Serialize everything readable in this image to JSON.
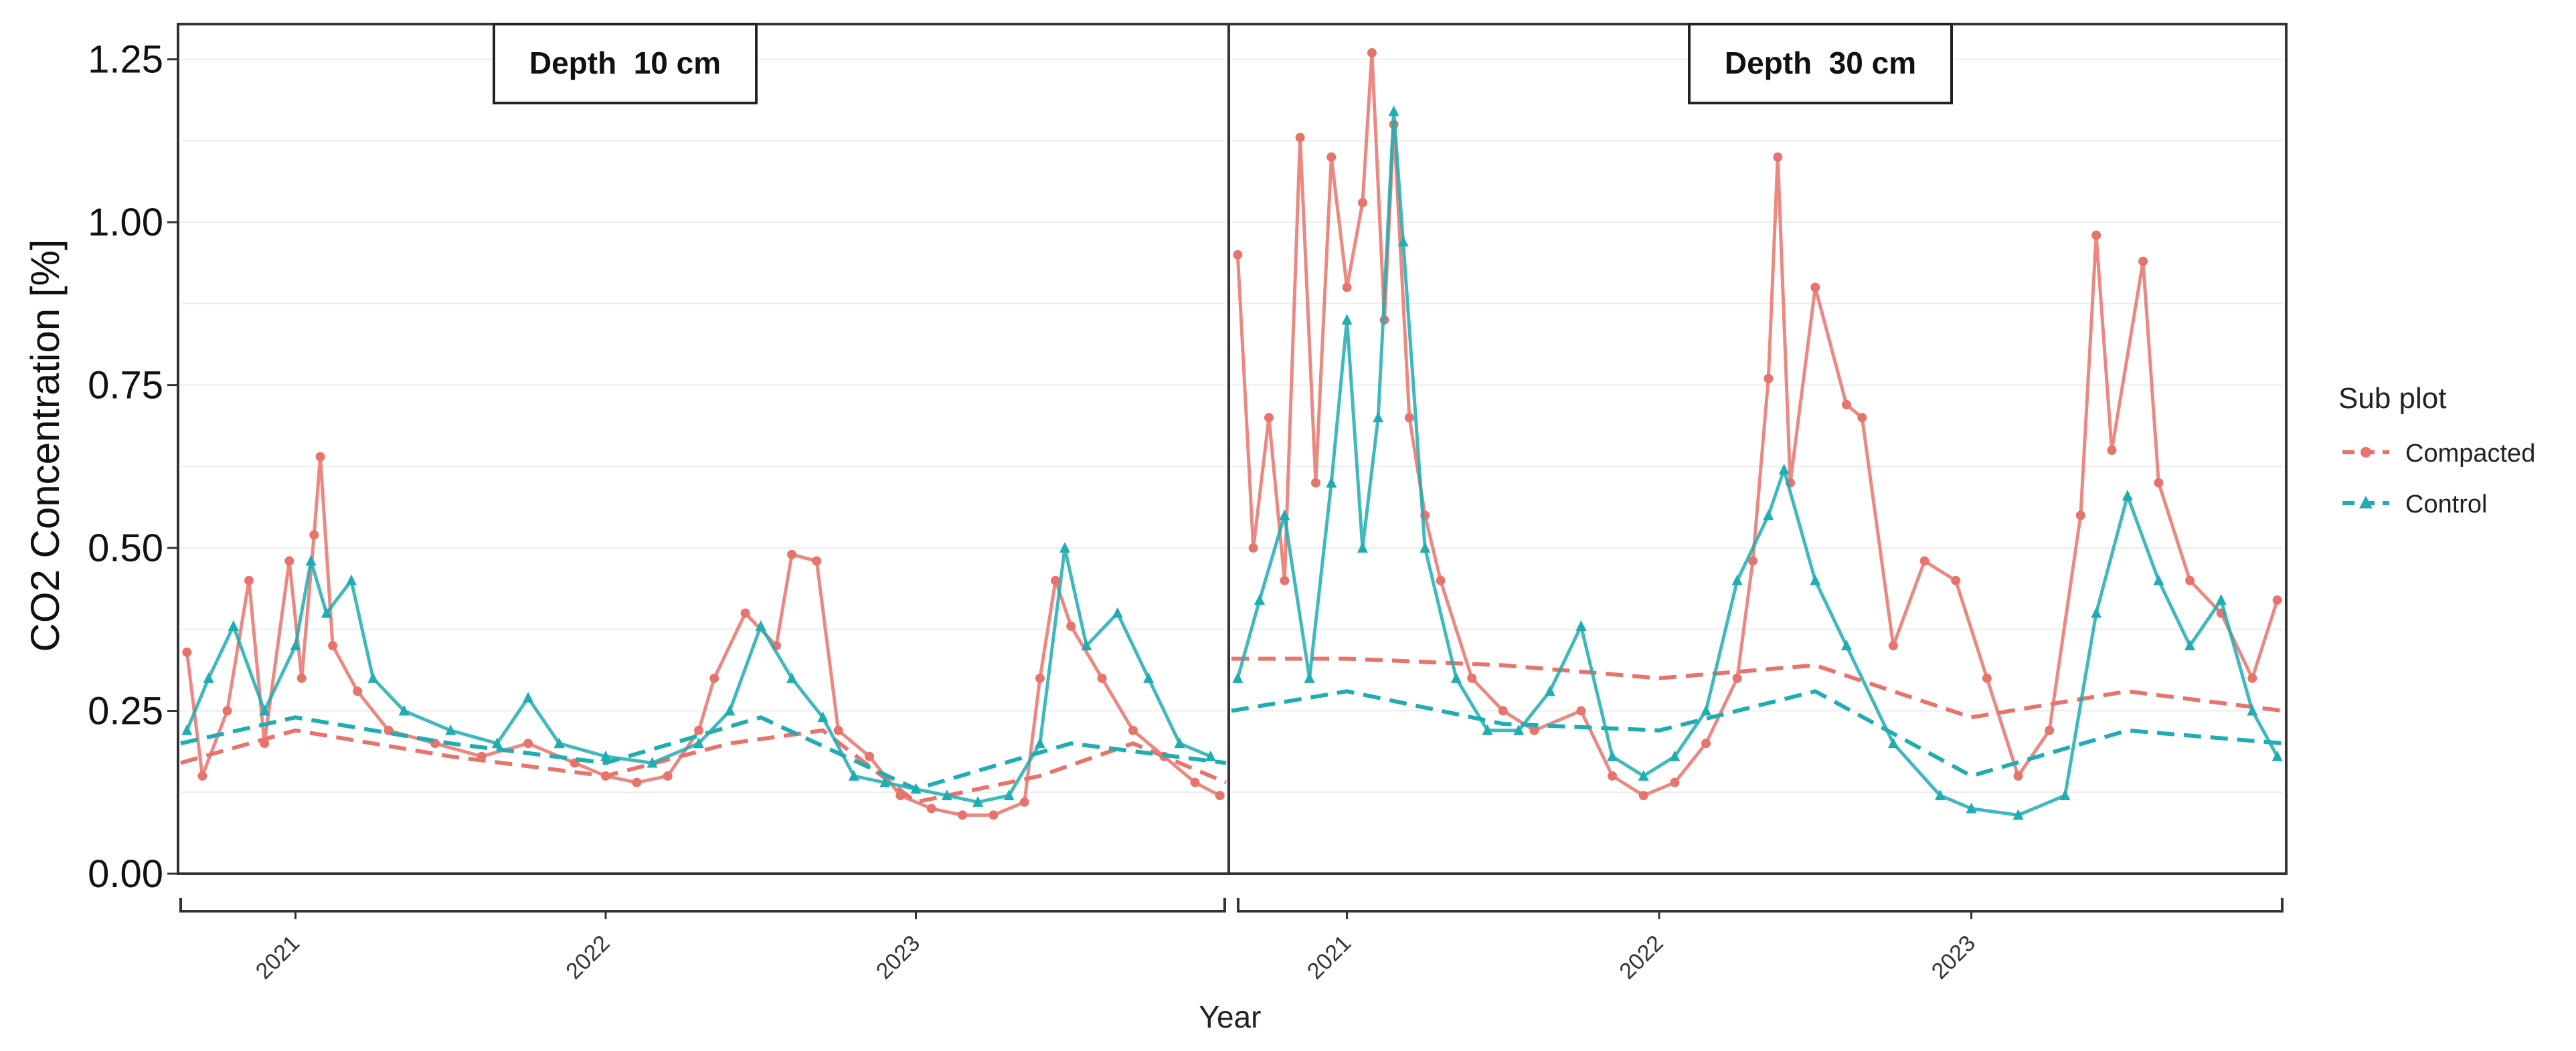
{
  "chart_data": {
    "type": "scatter",
    "ylabel": "CO2 Concentration [%]",
    "xlabel": "Year",
    "ylim": [
      0,
      1.3
    ],
    "y_ticks": [
      "0.00",
      "0.25",
      "0.50",
      "0.75",
      "1.00",
      "1.25"
    ],
    "y_tick_values": [
      0,
      0.25,
      0.5,
      0.75,
      1.0,
      1.25
    ],
    "x_tick_labels": [
      "2021",
      "2022",
      "2023"
    ],
    "x_range": [
      2020.63,
      2024.0
    ],
    "x_tick_values": [
      2021.0,
      2022.0,
      2023.0
    ],
    "legend": {
      "title": "Sub plot",
      "items": [
        {
          "label": "Compacted",
          "color": "#e8736c",
          "marker": "circle"
        },
        {
          "label": "Control",
          "color": "#1fadb2",
          "marker": "triangle"
        }
      ]
    },
    "panels": [
      {
        "label": "Depth  10 cm",
        "series": [
          {
            "name": "Compacted",
            "color": "#e8736c",
            "points": [
              [
                2020.65,
                0.34
              ],
              [
                2020.7,
                0.15
              ],
              [
                2020.78,
                0.25
              ],
              [
                2020.85,
                0.45
              ],
              [
                2020.9,
                0.2
              ],
              [
                2020.98,
                0.48
              ],
              [
                2021.02,
                0.3
              ],
              [
                2021.06,
                0.52
              ],
              [
                2021.08,
                0.64
              ],
              [
                2021.12,
                0.35
              ],
              [
                2021.2,
                0.28
              ],
              [
                2021.3,
                0.22
              ],
              [
                2021.45,
                0.2
              ],
              [
                2021.6,
                0.18
              ],
              [
                2021.75,
                0.2
              ],
              [
                2021.9,
                0.17
              ],
              [
                2022.0,
                0.15
              ],
              [
                2022.1,
                0.14
              ],
              [
                2022.2,
                0.15
              ],
              [
                2022.3,
                0.22
              ],
              [
                2022.35,
                0.3
              ],
              [
                2022.45,
                0.4
              ],
              [
                2022.55,
                0.35
              ],
              [
                2022.6,
                0.49
              ],
              [
                2022.68,
                0.48
              ],
              [
                2022.75,
                0.22
              ],
              [
                2022.85,
                0.18
              ],
              [
                2022.95,
                0.12
              ],
              [
                2023.05,
                0.1
              ],
              [
                2023.15,
                0.09
              ],
              [
                2023.25,
                0.09
              ],
              [
                2023.35,
                0.11
              ],
              [
                2023.4,
                0.3
              ],
              [
                2023.45,
                0.45
              ],
              [
                2023.5,
                0.38
              ],
              [
                2023.6,
                0.3
              ],
              [
                2023.7,
                0.22
              ],
              [
                2023.8,
                0.18
              ],
              [
                2023.9,
                0.14
              ],
              [
                2023.98,
                0.12
              ]
            ],
            "mean": [
              [
                2020.63,
                0.17
              ],
              [
                2021.0,
                0.22
              ],
              [
                2021.5,
                0.18
              ],
              [
                2022.0,
                0.15
              ],
              [
                2022.4,
                0.2
              ],
              [
                2022.7,
                0.22
              ],
              [
                2023.0,
                0.11
              ],
              [
                2023.4,
                0.15
              ],
              [
                2023.7,
                0.2
              ],
              [
                2024.0,
                0.14
              ]
            ]
          },
          {
            "name": "Control",
            "color": "#1fadb2",
            "points": [
              [
                2020.65,
                0.22
              ],
              [
                2020.72,
                0.3
              ],
              [
                2020.8,
                0.38
              ],
              [
                2020.9,
                0.25
              ],
              [
                2021.0,
                0.35
              ],
              [
                2021.05,
                0.48
              ],
              [
                2021.1,
                0.4
              ],
              [
                2021.18,
                0.45
              ],
              [
                2021.25,
                0.3
              ],
              [
                2021.35,
                0.25
              ],
              [
                2021.5,
                0.22
              ],
              [
                2021.65,
                0.2
              ],
              [
                2021.75,
                0.27
              ],
              [
                2021.85,
                0.2
              ],
              [
                2022.0,
                0.18
              ],
              [
                2022.15,
                0.17
              ],
              [
                2022.3,
                0.2
              ],
              [
                2022.4,
                0.25
              ],
              [
                2022.5,
                0.38
              ],
              [
                2022.6,
                0.3
              ],
              [
                2022.7,
                0.24
              ],
              [
                2022.8,
                0.15
              ],
              [
                2022.9,
                0.14
              ],
              [
                2023.0,
                0.13
              ],
              [
                2023.1,
                0.12
              ],
              [
                2023.2,
                0.11
              ],
              [
                2023.3,
                0.12
              ],
              [
                2023.4,
                0.2
              ],
              [
                2023.48,
                0.5
              ],
              [
                2023.55,
                0.35
              ],
              [
                2023.65,
                0.4
              ],
              [
                2023.75,
                0.3
              ],
              [
                2023.85,
                0.2
              ],
              [
                2023.95,
                0.18
              ]
            ],
            "mean": [
              [
                2020.63,
                0.2
              ],
              [
                2021.0,
                0.24
              ],
              [
                2021.5,
                0.2
              ],
              [
                2022.0,
                0.17
              ],
              [
                2022.5,
                0.24
              ],
              [
                2023.0,
                0.13
              ],
              [
                2023.5,
                0.2
              ],
              [
                2024.0,
                0.17
              ]
            ]
          }
        ]
      },
      {
        "label": "Depth  30 cm",
        "series": [
          {
            "name": "Compacted",
            "color": "#e8736c",
            "points": [
              [
                2020.65,
                0.95
              ],
              [
                2020.7,
                0.5
              ],
              [
                2020.75,
                0.7
              ],
              [
                2020.8,
                0.45
              ],
              [
                2020.85,
                1.13
              ],
              [
                2020.9,
                0.6
              ],
              [
                2020.95,
                1.1
              ],
              [
                2021.0,
                0.9
              ],
              [
                2021.05,
                1.03
              ],
              [
                2021.08,
                1.26
              ],
              [
                2021.12,
                0.85
              ],
              [
                2021.15,
                1.15
              ],
              [
                2021.2,
                0.7
              ],
              [
                2021.25,
                0.55
              ],
              [
                2021.3,
                0.45
              ],
              [
                2021.4,
                0.3
              ],
              [
                2021.5,
                0.25
              ],
              [
                2021.6,
                0.22
              ],
              [
                2021.75,
                0.25
              ],
              [
                2021.85,
                0.15
              ],
              [
                2021.95,
                0.12
              ],
              [
                2022.05,
                0.14
              ],
              [
                2022.15,
                0.2
              ],
              [
                2022.25,
                0.3
              ],
              [
                2022.3,
                0.48
              ],
              [
                2022.35,
                0.76
              ],
              [
                2022.38,
                1.1
              ],
              [
                2022.42,
                0.6
              ],
              [
                2022.5,
                0.9
              ],
              [
                2022.6,
                0.72
              ],
              [
                2022.65,
                0.7
              ],
              [
                2022.75,
                0.35
              ],
              [
                2022.85,
                0.48
              ],
              [
                2022.95,
                0.45
              ],
              [
                2023.05,
                0.3
              ],
              [
                2023.15,
                0.15
              ],
              [
                2023.25,
                0.22
              ],
              [
                2023.35,
                0.55
              ],
              [
                2023.4,
                0.98
              ],
              [
                2023.45,
                0.65
              ],
              [
                2023.55,
                0.94
              ],
              [
                2023.6,
                0.6
              ],
              [
                2023.7,
                0.45
              ],
              [
                2023.8,
                0.4
              ],
              [
                2023.9,
                0.3
              ],
              [
                2023.98,
                0.42
              ]
            ],
            "mean": [
              [
                2020.63,
                0.33
              ],
              [
                2021.0,
                0.33
              ],
              [
                2021.5,
                0.32
              ],
              [
                2022.0,
                0.3
              ],
              [
                2022.5,
                0.32
              ],
              [
                2023.0,
                0.24
              ],
              [
                2023.5,
                0.28
              ],
              [
                2024.0,
                0.25
              ]
            ]
          },
          {
            "name": "Control",
            "color": "#1fadb2",
            "points": [
              [
                2020.65,
                0.3
              ],
              [
                2020.72,
                0.42
              ],
              [
                2020.8,
                0.55
              ],
              [
                2020.88,
                0.3
              ],
              [
                2020.95,
                0.6
              ],
              [
                2021.0,
                0.85
              ],
              [
                2021.05,
                0.5
              ],
              [
                2021.1,
                0.7
              ],
              [
                2021.15,
                1.17
              ],
              [
                2021.18,
                0.97
              ],
              [
                2021.25,
                0.5
              ],
              [
                2021.35,
                0.3
              ],
              [
                2021.45,
                0.22
              ],
              [
                2021.55,
                0.22
              ],
              [
                2021.65,
                0.28
              ],
              [
                2021.75,
                0.38
              ],
              [
                2021.85,
                0.18
              ],
              [
                2021.95,
                0.15
              ],
              [
                2022.05,
                0.18
              ],
              [
                2022.15,
                0.25
              ],
              [
                2022.25,
                0.45
              ],
              [
                2022.35,
                0.55
              ],
              [
                2022.4,
                0.62
              ],
              [
                2022.5,
                0.45
              ],
              [
                2022.6,
                0.35
              ],
              [
                2022.75,
                0.2
              ],
              [
                2022.9,
                0.12
              ],
              [
                2023.0,
                0.1
              ],
              [
                2023.15,
                0.09
              ],
              [
                2023.3,
                0.12
              ],
              [
                2023.4,
                0.4
              ],
              [
                2023.5,
                0.58
              ],
              [
                2023.6,
                0.45
              ],
              [
                2023.7,
                0.35
              ],
              [
                2023.8,
                0.42
              ],
              [
                2023.9,
                0.25
              ],
              [
                2023.98,
                0.18
              ]
            ],
            "mean": [
              [
                2020.63,
                0.25
              ],
              [
                2021.0,
                0.28
              ],
              [
                2021.5,
                0.23
              ],
              [
                2022.0,
                0.22
              ],
              [
                2022.5,
                0.28
              ],
              [
                2023.0,
                0.15
              ],
              [
                2023.5,
                0.22
              ],
              [
                2024.0,
                0.2
              ]
            ]
          }
        ]
      }
    ]
  }
}
